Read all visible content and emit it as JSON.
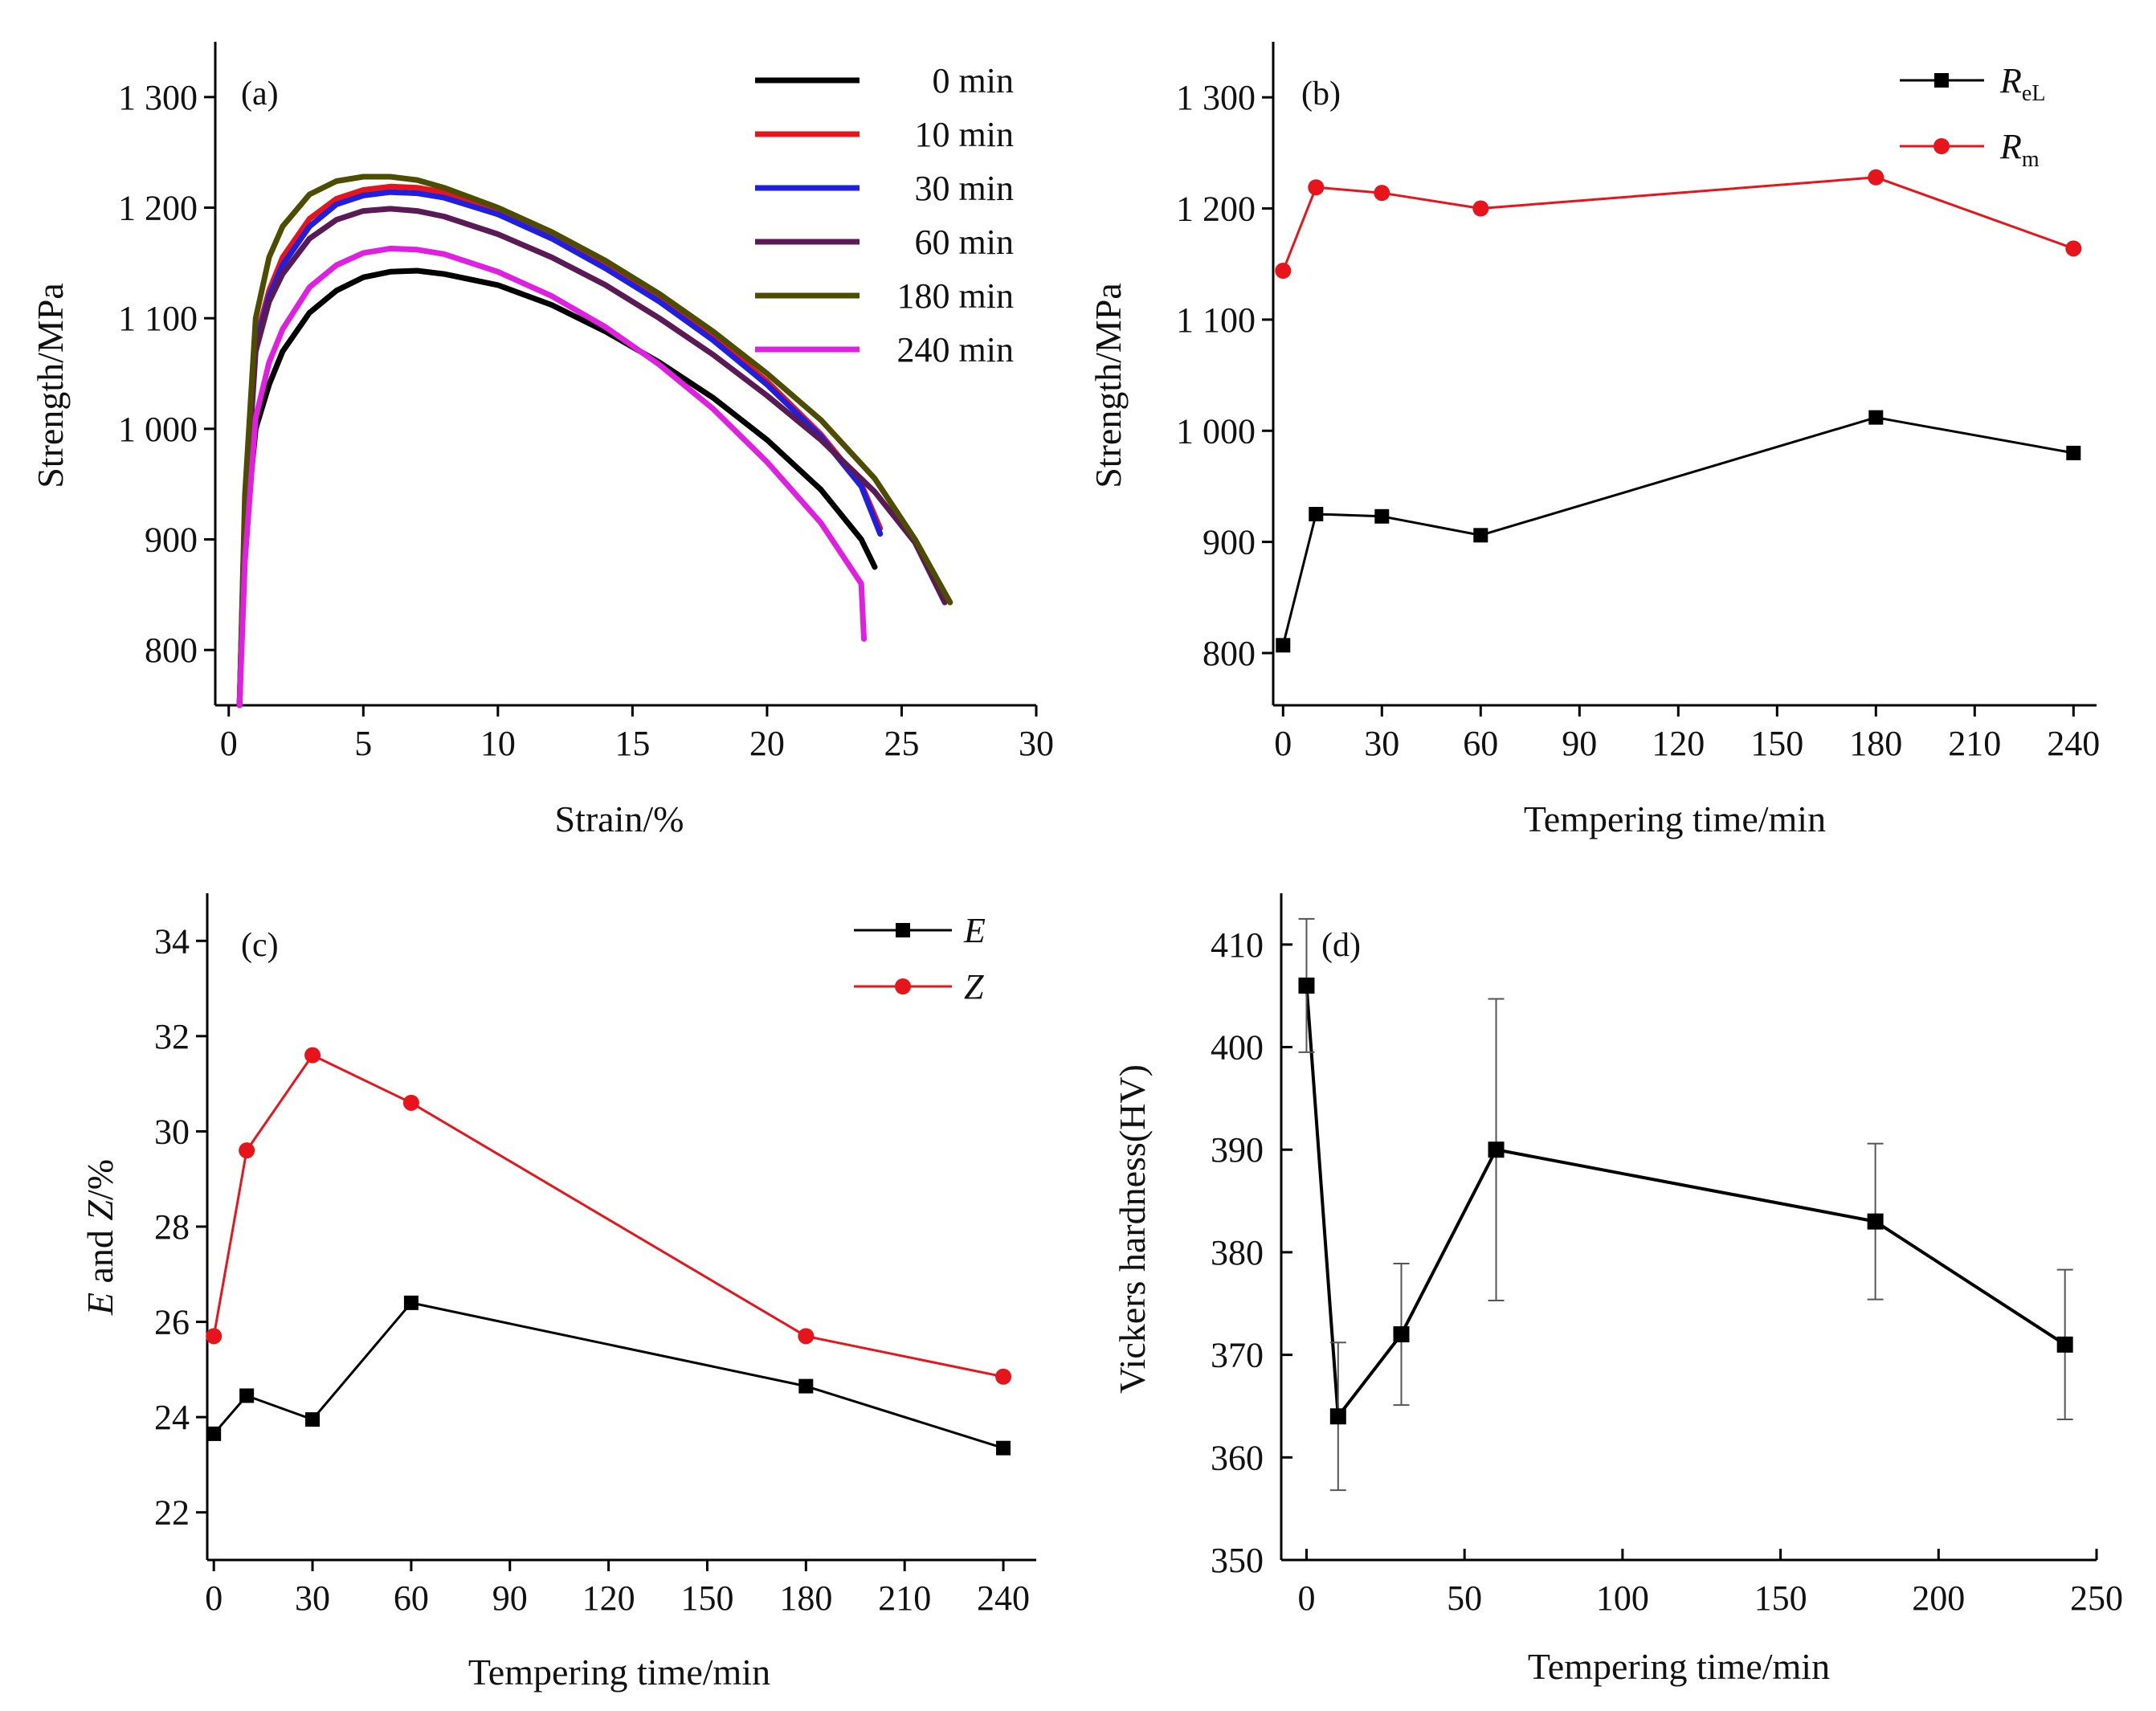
{
  "chart_data": [
    {
      "id": "a",
      "type": "line",
      "panel_label": "(a)",
      "xlabel": "Strain/%",
      "ylabel": "Strength/MPa",
      "xlim": [
        -0.5,
        30
      ],
      "ylim": [
        750,
        1350
      ],
      "xticks": [
        0,
        5,
        10,
        15,
        20,
        25,
        30
      ],
      "xtick_labels": [
        "0",
        "5",
        "10",
        "15",
        "20",
        "25",
        "30"
      ],
      "yticks": [
        800,
        900,
        1000,
        1100,
        1200,
        1300
      ],
      "ytick_labels": [
        "800",
        "900",
        "1 000",
        "1 100",
        "1 200",
        "1 300"
      ],
      "legend_position": "top-right",
      "series": [
        {
          "name": "0 min",
          "color": "#000000",
          "x": [
            0.4,
            0.6,
            1.0,
            1.5,
            2.0,
            3.0,
            4.0,
            5.0,
            6.0,
            7.0,
            8.0,
            10.0,
            12.0,
            14.0,
            16.0,
            18.0,
            20.0,
            22.0,
            23.5,
            24.0
          ],
          "y": [
            750,
            900,
            1000,
            1040,
            1070,
            1105,
            1125,
            1137,
            1142,
            1143,
            1140,
            1130,
            1112,
            1088,
            1060,
            1028,
            990,
            945,
            900,
            875
          ]
        },
        {
          "name": "10 min",
          "color": "#e8141b",
          "x": [
            0.4,
            0.6,
            1.0,
            1.5,
            2.0,
            3.0,
            4.0,
            5.0,
            6.0,
            7.0,
            8.0,
            10.0,
            12.0,
            14.0,
            16.0,
            18.0,
            20.0,
            22.0,
            23.5,
            24.2
          ],
          "y": [
            750,
            930,
            1080,
            1125,
            1155,
            1190,
            1208,
            1216,
            1219,
            1218,
            1214,
            1198,
            1175,
            1148,
            1118,
            1083,
            1043,
            995,
            950,
            910
          ]
        },
        {
          "name": "30 min",
          "color": "#1f1fe0",
          "x": [
            0.4,
            0.6,
            1.0,
            1.5,
            2.0,
            3.0,
            4.0,
            5.0,
            6.0,
            7.0,
            8.0,
            10.0,
            12.0,
            14.0,
            16.0,
            18.0,
            20.0,
            22.0,
            23.5,
            24.2
          ],
          "y": [
            750,
            925,
            1075,
            1120,
            1148,
            1183,
            1203,
            1211,
            1214,
            1213,
            1209,
            1194,
            1172,
            1145,
            1115,
            1080,
            1040,
            993,
            948,
            905
          ]
        },
        {
          "name": "60 min",
          "color": "#5a1a55",
          "x": [
            0.4,
            0.6,
            1.0,
            1.5,
            2.0,
            3.0,
            4.0,
            5.0,
            6.0,
            7.0,
            8.0,
            10.0,
            12.0,
            14.0,
            16.0,
            18.0,
            20.0,
            22.0,
            24.0,
            25.5,
            26.6
          ],
          "y": [
            750,
            920,
            1070,
            1115,
            1140,
            1172,
            1189,
            1197,
            1199,
            1197,
            1192,
            1176,
            1155,
            1130,
            1100,
            1067,
            1030,
            990,
            943,
            897,
            843
          ]
        },
        {
          "name": "180 min",
          "color": "#4d4d00",
          "x": [
            0.4,
            0.6,
            1.0,
            1.5,
            2.0,
            3.0,
            4.0,
            5.0,
            6.0,
            7.0,
            8.0,
            10.0,
            12.0,
            14.0,
            16.0,
            18.0,
            20.0,
            22.0,
            24.0,
            25.5,
            26.8
          ],
          "y": [
            750,
            940,
            1100,
            1155,
            1183,
            1212,
            1224,
            1228,
            1228,
            1225,
            1218,
            1200,
            1178,
            1152,
            1122,
            1088,
            1050,
            1008,
            955,
            900,
            843
          ]
        },
        {
          "name": "240 min",
          "color": "#e020e0",
          "x": [
            0.4,
            0.6,
            1.0,
            1.5,
            2.0,
            3.0,
            4.0,
            5.0,
            6.0,
            7.0,
            8.0,
            10.0,
            12.0,
            14.0,
            16.0,
            18.0,
            20.0,
            22.0,
            23.5,
            23.6
          ],
          "y": [
            750,
            880,
            1010,
            1060,
            1090,
            1128,
            1148,
            1159,
            1163,
            1162,
            1158,
            1142,
            1120,
            1092,
            1058,
            1018,
            970,
            915,
            860,
            810
          ]
        }
      ]
    },
    {
      "id": "b",
      "type": "line",
      "panel_label": "(b)",
      "xlabel": "Tempering time/min",
      "ylabel": "Strength/MPa",
      "xlim": [
        -3,
        247
      ],
      "ylim": [
        753,
        1350
      ],
      "xticks": [
        0,
        30,
        60,
        90,
        120,
        150,
        180,
        210,
        240
      ],
      "xtick_labels": [
        "0",
        "30",
        "60",
        "90",
        "120",
        "150",
        "180",
        "210",
        "240"
      ],
      "yticks": [
        800,
        900,
        1000,
        1100,
        1200,
        1300
      ],
      "ytick_labels": [
        "800",
        "900",
        "1 000",
        "1 100",
        "1 200",
        "1 300"
      ],
      "legend_position": "top-right",
      "series": [
        {
          "name": "R",
          "name_sub": "eL",
          "color": "#000000",
          "marker": "square",
          "x": [
            0,
            10,
            30,
            60,
            180,
            240
          ],
          "y": [
            807,
            925,
            923,
            906,
            1012,
            980
          ]
        },
        {
          "name": "R",
          "name_sub": "m",
          "color": "#e8141b",
          "marker": "circle",
          "x": [
            0,
            10,
            30,
            60,
            180,
            240
          ],
          "y": [
            1144,
            1219,
            1214,
            1200,
            1228,
            1164
          ]
        }
      ]
    },
    {
      "id": "c",
      "type": "line",
      "panel_label": "(c)",
      "xlabel": "Tempering time/min",
      "ylabel_italic_1": "E",
      "ylabel_mid": " and ",
      "ylabel_italic_2": "Z",
      "ylabel_end": "/%",
      "xlim": [
        -2,
        250
      ],
      "ylim": [
        21,
        35
      ],
      "xticks": [
        0,
        30,
        60,
        90,
        120,
        150,
        180,
        210,
        240
      ],
      "xtick_labels": [
        "0",
        "30",
        "60",
        "90",
        "120",
        "150",
        "180",
        "210",
        "240"
      ],
      "yticks": [
        22,
        24,
        26,
        28,
        30,
        32,
        34
      ],
      "ytick_labels": [
        "22",
        "24",
        "26",
        "28",
        "30",
        "32",
        "34"
      ],
      "legend_position": "top-right",
      "series": [
        {
          "name": "E",
          "color": "#000000",
          "marker": "square",
          "x": [
            0,
            10,
            30,
            60,
            180,
            240
          ],
          "y": [
            23.65,
            24.45,
            23.95,
            26.4,
            24.65,
            23.35
          ]
        },
        {
          "name": "Z",
          "color": "#e8141b",
          "marker": "circle",
          "x": [
            0,
            10,
            30,
            60,
            180,
            240
          ],
          "y": [
            25.7,
            29.6,
            31.6,
            30.6,
            25.7,
            24.85
          ]
        }
      ]
    },
    {
      "id": "d",
      "type": "line",
      "panel_label": "(d)",
      "xlabel": "Tempering time/min",
      "ylabel": "Vickers hardness(HV)",
      "xlim": [
        -8,
        250
      ],
      "ylim": [
        350,
        415
      ],
      "xticks": [
        0,
        50,
        100,
        150,
        200,
        250
      ],
      "xtick_labels": [
        "0",
        "50",
        "100",
        "150",
        "200",
        "250"
      ],
      "yticks": [
        350,
        360,
        370,
        380,
        390,
        400,
        410
      ],
      "ytick_labels": [
        "350",
        "360",
        "370",
        "380",
        "390",
        "400",
        "410"
      ],
      "series": [
        {
          "name": "HV",
          "color": "#000000",
          "marker": "square",
          "x": [
            0,
            10,
            30,
            60,
            180,
            240
          ],
          "y": [
            406,
            364,
            372,
            390,
            383,
            371
          ],
          "err": [
            6.5,
            7.2,
            6.9,
            14.7,
            7.6,
            7.3
          ]
        }
      ]
    }
  ]
}
